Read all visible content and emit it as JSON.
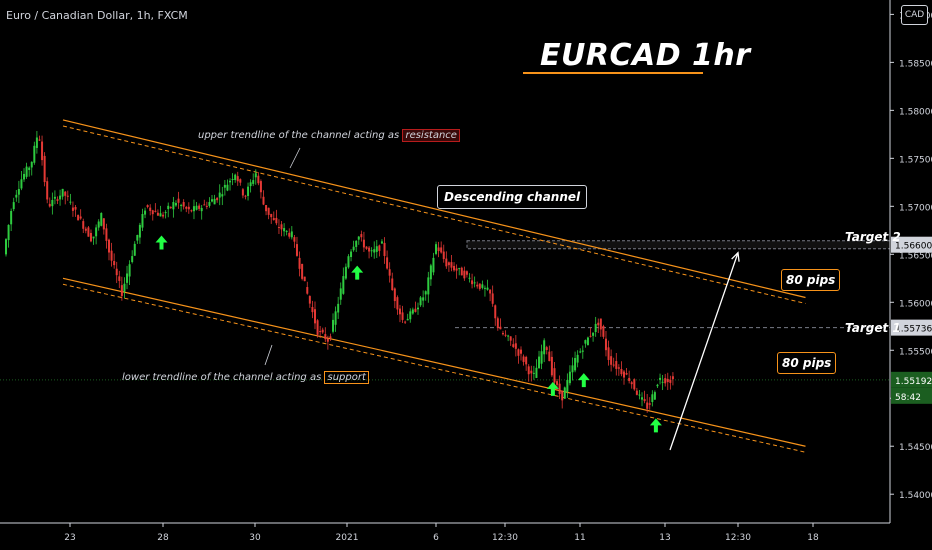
{
  "header": {
    "symbol_title": "Euro / Canadian Dollar, 1h, FXCM",
    "currency": "CAD"
  },
  "annotations": {
    "main_title": "EURCAD 1hr",
    "descending_channel": "Descending channel",
    "upper_note_prefix": "upper trendline of the channel acting as",
    "upper_note_keyword": "resistance",
    "lower_note_prefix": "lower trendline of the channel acting as",
    "lower_note_keyword": "support",
    "target1": "Target 1",
    "target2": "Target 2",
    "pips_upper": "80 pips",
    "pips_lower": "80 pips"
  },
  "colors": {
    "background": "#000000",
    "up_candle": "#2ecc40",
    "down_candle": "#e53935",
    "channel_line": "#f7931a",
    "arrow_green": "#22ff44",
    "current_price": "#1b5e20",
    "target_line": "#787b86"
  },
  "chart_data": {
    "type": "candlestick",
    "symbol": "EURCAD",
    "timeframe": "1h",
    "source": "FXCM",
    "y_axis": {
      "range": [
        1.537,
        1.5915
      ],
      "ticks": [
        "1.54000",
        "1.54500",
        "1.55000",
        "1.55500",
        "1.56000",
        "1.56500",
        "1.57000",
        "1.57500",
        "1.58000",
        "1.58500",
        "1.59000"
      ]
    },
    "x_axis": {
      "ticks": [
        "23",
        "28",
        "30",
        "2021",
        "6",
        "12:30",
        "11",
        "13",
        "12:30",
        "18"
      ]
    },
    "price_path": [
      [
        0.0,
        1.565
      ],
      [
        0.9,
        1.5705
      ],
      [
        1.8,
        1.573
      ],
      [
        2.7,
        1.5745
      ],
      [
        3.4,
        1.578
      ],
      [
        4.3,
        1.57
      ],
      [
        5.8,
        1.5715
      ],
      [
        7.2,
        1.569
      ],
      [
        8.6,
        1.5665
      ],
      [
        9.5,
        1.569
      ],
      [
        10.3,
        1.565
      ],
      [
        11.5,
        1.561
      ],
      [
        12.6,
        1.5655
      ],
      [
        13.8,
        1.57
      ],
      [
        15.4,
        1.569
      ],
      [
        16.7,
        1.5705
      ],
      [
        18.0,
        1.5695
      ],
      [
        19.4,
        1.57
      ],
      [
        20.8,
        1.571
      ],
      [
        22.5,
        1.5735
      ],
      [
        23.4,
        1.571
      ],
      [
        24.5,
        1.5735
      ],
      [
        25.3,
        1.57
      ],
      [
        26.5,
        1.568
      ],
      [
        28.0,
        1.567
      ],
      [
        29.2,
        1.562
      ],
      [
        30.5,
        1.557
      ],
      [
        31.6,
        1.556
      ],
      [
        32.5,
        1.56
      ],
      [
        33.5,
        1.565
      ],
      [
        34.4,
        1.567
      ],
      [
        35.6,
        1.565
      ],
      [
        36.8,
        1.566
      ],
      [
        37.8,
        1.561
      ],
      [
        38.8,
        1.558
      ],
      [
        39.8,
        1.559
      ],
      [
        41.0,
        1.561
      ],
      [
        42.0,
        1.566
      ],
      [
        43.0,
        1.564
      ],
      [
        44.6,
        1.563
      ],
      [
        45.8,
        1.562
      ],
      [
        47.2,
        1.561
      ],
      [
        48.1,
        1.557
      ],
      [
        49.2,
        1.556
      ],
      [
        50.5,
        1.554
      ],
      [
        51.4,
        1.552
      ],
      [
        52.6,
        1.556
      ],
      [
        53.4,
        1.552
      ],
      [
        54.2,
        1.55
      ],
      [
        55.5,
        1.554
      ],
      [
        56.6,
        1.556
      ],
      [
        57.8,
        1.558
      ],
      [
        58.8,
        1.554
      ],
      [
        59.8,
        1.553
      ],
      [
        60.8,
        1.552
      ],
      [
        61.8,
        1.55
      ],
      [
        62.6,
        1.549
      ],
      [
        63.6,
        1.552
      ],
      [
        65.0,
        1.5519
      ]
    ],
    "candles": 65,
    "last_price": "1.55192",
    "countdown": "58:42",
    "channel": {
      "upper": [
        [
          0.0,
          1.579
        ],
        [
          75.0,
          1.5605
        ]
      ],
      "lower": [
        [
          0.0,
          1.5625
        ],
        [
          75.0,
          1.545
        ]
      ]
    },
    "levels": {
      "target1": {
        "price": 1.55736,
        "label": "1.55736"
      },
      "target2": {
        "price": 1.566,
        "label": "1.56600"
      }
    },
    "support_touch_candles": [
      15,
      34,
      53,
      56,
      63
    ]
  }
}
